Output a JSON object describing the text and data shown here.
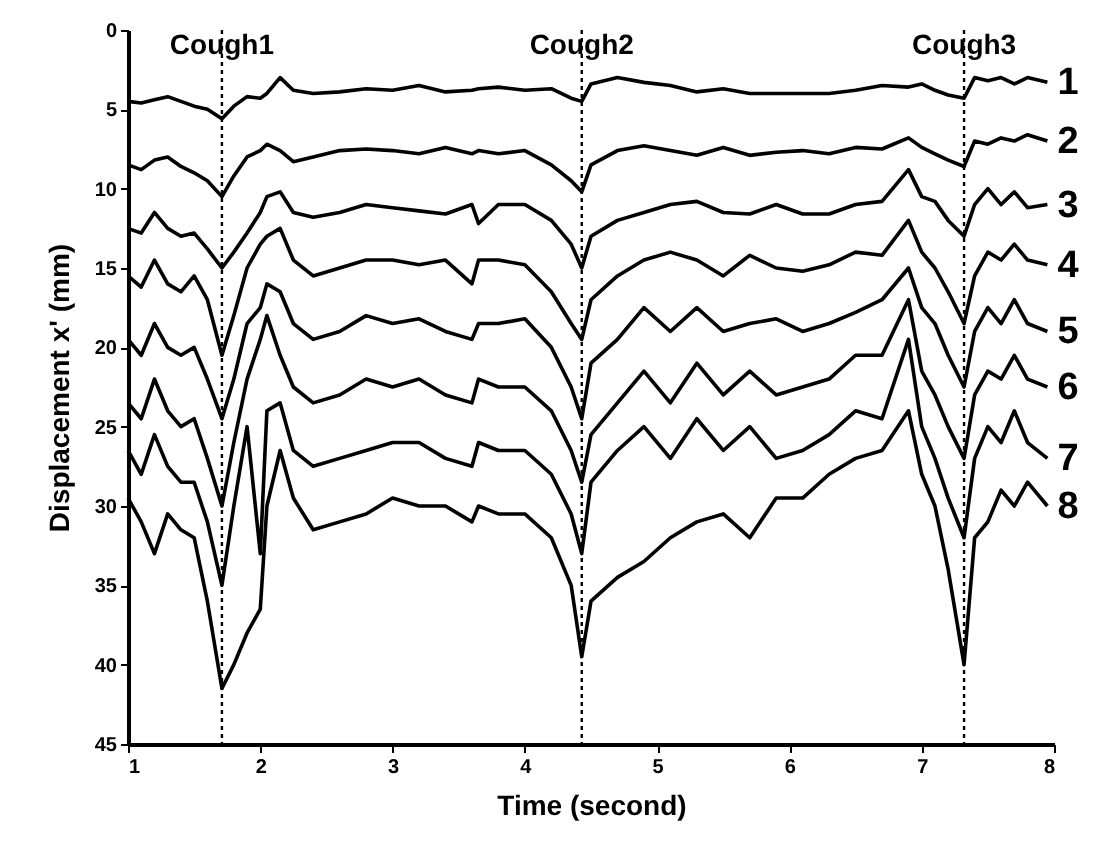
{
  "chart_data": {
    "type": "line",
    "xlabel": "Time (second)",
    "ylabel": "Displacement x' (mm)",
    "x": [
      1.0,
      1.1,
      1.2,
      1.3,
      1.4,
      1.5,
      1.6,
      1.71,
      1.8,
      1.9,
      2.0,
      2.05,
      2.15,
      2.25,
      2.4,
      2.6,
      2.8,
      3.0,
      3.2,
      3.4,
      3.6,
      3.65,
      3.8,
      4.0,
      4.2,
      4.35,
      4.43,
      4.5,
      4.7,
      4.9,
      5.1,
      5.3,
      5.5,
      5.7,
      5.9,
      6.1,
      6.3,
      6.5,
      6.7,
      6.9,
      7.0,
      7.1,
      7.2,
      7.32,
      7.4,
      7.5,
      7.6,
      7.7,
      7.8,
      7.95
    ],
    "series": [
      {
        "name": "1",
        "color": "#000000",
        "values": [
          4.5,
          4.6,
          4.4,
          4.2,
          4.5,
          4.8,
          5.0,
          5.6,
          4.8,
          4.2,
          4.3,
          4.0,
          3.0,
          3.8,
          4.0,
          3.9,
          3.7,
          3.8,
          3.5,
          3.9,
          3.8,
          3.7,
          3.6,
          3.8,
          3.7,
          4.3,
          4.5,
          3.4,
          3.0,
          3.3,
          3.5,
          3.9,
          3.7,
          4.0,
          4.0,
          4.0,
          4.0,
          3.8,
          3.5,
          3.6,
          3.4,
          3.8,
          4.1,
          4.3,
          3.0,
          3.2,
          3.0,
          3.4,
          3.0,
          3.3
        ]
      },
      {
        "name": "2",
        "color": "#000000",
        "values": [
          8.5,
          8.8,
          8.2,
          8.0,
          8.6,
          9.0,
          9.5,
          10.5,
          9.2,
          8.0,
          7.6,
          7.2,
          7.6,
          8.3,
          8.0,
          7.6,
          7.5,
          7.6,
          7.8,
          7.4,
          7.8,
          7.6,
          7.8,
          7.6,
          8.5,
          9.5,
          10.2,
          8.5,
          7.6,
          7.3,
          7.6,
          7.9,
          7.4,
          7.9,
          7.7,
          7.6,
          7.8,
          7.4,
          7.5,
          6.8,
          7.4,
          7.8,
          8.2,
          8.6,
          7.0,
          7.2,
          6.8,
          7.0,
          6.6,
          7.0
        ]
      },
      {
        "name": "3",
        "color": "#000000",
        "values": [
          12.5,
          12.8,
          11.5,
          12.5,
          13.0,
          12.8,
          13.8,
          15.0,
          14.0,
          12.8,
          11.5,
          10.5,
          10.2,
          11.5,
          11.8,
          11.5,
          11.0,
          11.2,
          11.4,
          11.6,
          11.0,
          12.2,
          11.0,
          11.0,
          12.0,
          13.5,
          15.0,
          13.0,
          12.0,
          11.5,
          11.0,
          10.8,
          11.5,
          11.6,
          11.0,
          11.6,
          11.6,
          11.0,
          10.8,
          8.8,
          10.5,
          10.8,
          12.0,
          13.0,
          11.0,
          10.0,
          11.0,
          10.2,
          11.2,
          11.0
        ]
      },
      {
        "name": "4",
        "color": "#000000",
        "values": [
          15.5,
          16.2,
          14.5,
          16.0,
          16.5,
          15.5,
          17.0,
          20.5,
          18.0,
          15.0,
          13.5,
          13.0,
          12.5,
          14.5,
          15.5,
          15.0,
          14.5,
          14.5,
          14.8,
          14.5,
          16.0,
          14.5,
          14.5,
          14.8,
          16.5,
          18.5,
          19.5,
          17.0,
          15.5,
          14.5,
          14.0,
          14.5,
          15.5,
          14.2,
          15.0,
          15.2,
          14.8,
          14.0,
          14.2,
          12.0,
          14.0,
          15.0,
          16.5,
          18.5,
          15.5,
          14.0,
          14.5,
          13.5,
          14.5,
          14.8
        ]
      },
      {
        "name": "5",
        "color": "#000000",
        "values": [
          19.5,
          20.5,
          18.5,
          20.0,
          20.5,
          20.0,
          22.0,
          24.5,
          22.0,
          18.5,
          17.5,
          16.0,
          16.5,
          18.5,
          19.5,
          19.0,
          18.0,
          18.5,
          18.2,
          19.0,
          19.5,
          18.5,
          18.5,
          18.2,
          20.0,
          22.5,
          24.5,
          21.0,
          19.5,
          17.5,
          19.0,
          17.5,
          19.0,
          18.5,
          18.2,
          19.0,
          18.5,
          17.8,
          17.0,
          15.0,
          17.5,
          18.5,
          20.5,
          22.5,
          19.0,
          17.5,
          18.5,
          17.0,
          18.5,
          19.0
        ]
      },
      {
        "name": "6",
        "color": "#000000",
        "values": [
          23.5,
          24.5,
          22.0,
          24.0,
          25.0,
          24.5,
          27.0,
          30.0,
          26.0,
          22.0,
          19.5,
          18.0,
          20.5,
          22.5,
          23.5,
          23.0,
          22.0,
          22.5,
          22.0,
          23.0,
          23.5,
          22.0,
          22.5,
          22.5,
          24.0,
          26.5,
          28.5,
          25.5,
          23.5,
          21.5,
          23.5,
          21.0,
          23.0,
          21.5,
          23.0,
          22.5,
          22.0,
          20.5,
          20.5,
          17.0,
          21.5,
          23.0,
          25.0,
          27.0,
          23.0,
          21.5,
          22.0,
          20.5,
          22.0,
          22.5
        ]
      },
      {
        "name": "7",
        "color": "#000000",
        "values": [
          26.5,
          28.0,
          25.5,
          27.5,
          28.5,
          28.5,
          31.0,
          35.0,
          30.0,
          25.0,
          33.0,
          24.0,
          23.5,
          26.5,
          27.5,
          27.0,
          26.5,
          26.0,
          26.0,
          27.0,
          27.5,
          26.0,
          26.5,
          26.5,
          28.0,
          30.5,
          33.0,
          28.5,
          26.5,
          25.0,
          27.0,
          24.5,
          26.5,
          25.0,
          27.0,
          26.5,
          25.5,
          24.0,
          24.5,
          19.5,
          25.0,
          27.0,
          29.5,
          32.0,
          27.0,
          25.0,
          26.0,
          24.0,
          26.0,
          27.0
        ]
      },
      {
        "name": "8",
        "color": "#000000",
        "values": [
          29.5,
          31.0,
          33.0,
          30.5,
          31.5,
          32.0,
          36.0,
          41.5,
          40.0,
          38.0,
          36.5,
          30.0,
          26.5,
          29.5,
          31.5,
          31.0,
          30.5,
          29.5,
          30.0,
          30.0,
          31.0,
          30.0,
          30.5,
          30.5,
          32.0,
          35.0,
          39.5,
          36.0,
          34.5,
          33.5,
          32.0,
          31.0,
          30.5,
          32.0,
          29.5,
          29.5,
          28.0,
          27.0,
          26.5,
          24.0,
          28.0,
          30.0,
          34.0,
          40.0,
          32.0,
          31.0,
          29.0,
          30.0,
          28.5,
          30.0
        ]
      }
    ],
    "line_style": "solid",
    "xlim": [
      1,
      8
    ],
    "xticks": [
      1,
      2,
      3,
      4,
      5,
      6,
      7,
      8
    ],
    "ylim": [
      45,
      0
    ],
    "yticks": [
      0,
      5,
      10,
      15,
      20,
      25,
      30,
      35,
      40,
      45
    ],
    "ref_lines": [
      {
        "axis": "x",
        "value": 1.71,
        "label": "Cough1",
        "color": "#000000",
        "line_style": "dotted"
      },
      {
        "axis": "x",
        "value": 4.43,
        "label": "Cough2",
        "color": "#000000",
        "line_style": "dotted"
      },
      {
        "axis": "x",
        "value": 7.32,
        "label": "Cough3",
        "color": "#000000",
        "line_style": "dotted"
      }
    ]
  }
}
